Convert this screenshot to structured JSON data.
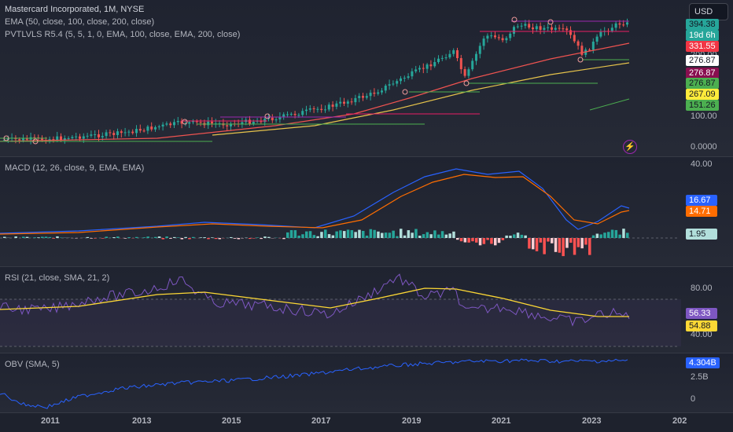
{
  "currency": "USD",
  "price_pane": {
    "legend": {
      "title": "Mastercard Incorporated, 1M, NYSE",
      "ema": "EMA (50, close, 100, close, 200, close)",
      "pvt": "PVTLVLS R5.4 (5, 5, 1, 0, EMA, 100, close, EMA, 200, close)"
    },
    "scale_labels": [
      "200.00",
      "100.00",
      "0.0000"
    ],
    "badges": [
      {
        "text": "394.38",
        "bg": "#26a69a",
        "fg": "#131722"
      },
      {
        "text": "19d 6h",
        "bg": "#26a69a",
        "fg": "#ffffff"
      },
      {
        "text": "331.55",
        "bg": "#f23645",
        "fg": "#ffffff"
      },
      {
        "text": "276.87",
        "bg": "#ffffff",
        "fg": "#131722"
      },
      {
        "text": "276.87",
        "bg": "#880e4f",
        "fg": "#ffffff"
      },
      {
        "text": "276.87",
        "bg": "#4caf50",
        "fg": "#131722"
      },
      {
        "text": "267.09",
        "bg": "#ffeb3b",
        "fg": "#131722"
      },
      {
        "text": "151.26",
        "bg": "#4caf50",
        "fg": "#131722"
      }
    ],
    "flash_icon": "lightning-icon"
  },
  "macd_pane": {
    "legend": "MACD (12, 26, close, 9, EMA, EMA)",
    "scale_labels": [
      "40.00"
    ],
    "badges": [
      {
        "text": "16.67",
        "bg": "#2962ff",
        "fg": "#ffffff"
      },
      {
        "text": "14.71",
        "bg": "#ff6d00",
        "fg": "#ffffff"
      },
      {
        "text": "1.95",
        "bg": "#b2dfdb",
        "fg": "#131722"
      }
    ]
  },
  "rsi_pane": {
    "legend": "RSI (21, close, SMA, 21, 2)",
    "scale_labels": [
      "80.00",
      "40.00"
    ],
    "badges": [
      {
        "text": "56.33",
        "bg": "#7e57c2",
        "fg": "#ffffff"
      },
      {
        "text": "54.88",
        "bg": "#fdd835",
        "fg": "#131722"
      }
    ]
  },
  "obv_pane": {
    "legend": "OBV (SMA, 5)",
    "scale_labels": [
      "2.5B",
      "0"
    ],
    "badges": [
      {
        "text": "4.304B",
        "bg": "#2962ff",
        "fg": "#ffffff"
      }
    ]
  },
  "time_axis": [
    "2011",
    "2013",
    "2015",
    "2017",
    "2019",
    "2021",
    "2023",
    "202"
  ],
  "colors": {
    "up": "#26a69a",
    "down": "#ef5350",
    "ema50": "#ef5350",
    "ema200": "#e6c34b",
    "macd": "#2962ff",
    "signal": "#ff6d00",
    "rsi": "#7e57c2",
    "rsi_ma": "#fdd835",
    "obv": "#2962ff"
  }
}
